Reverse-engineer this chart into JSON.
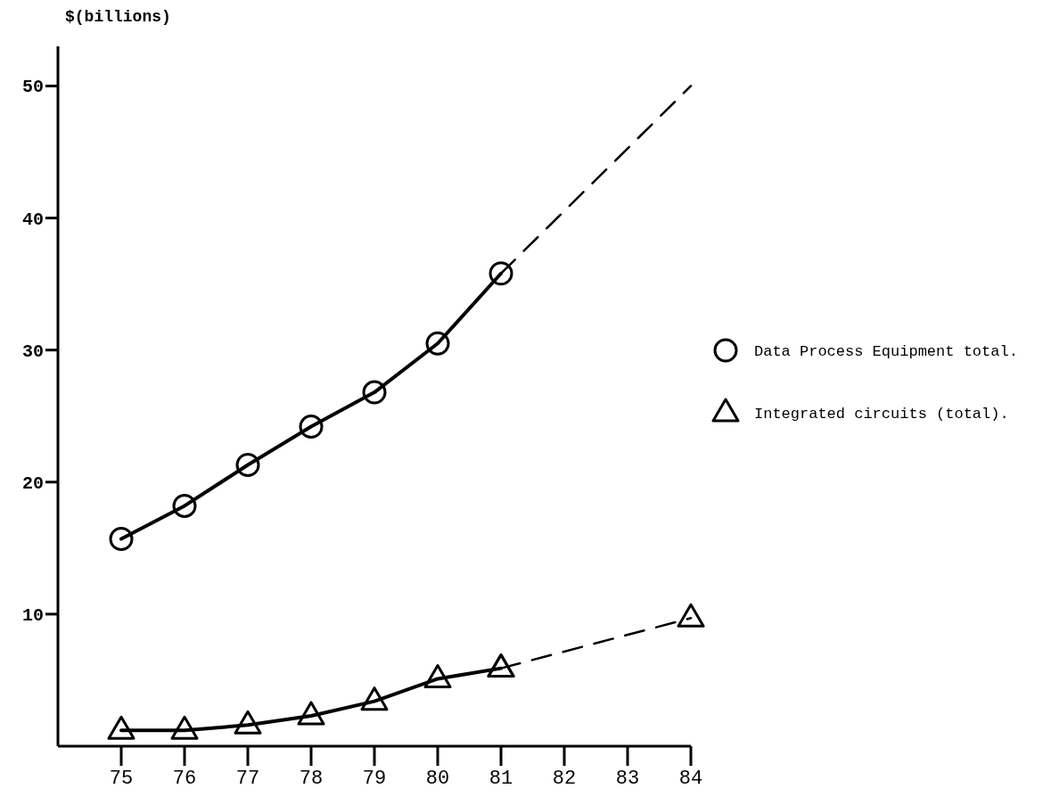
{
  "chart_data": {
    "type": "line",
    "ylabel": "$(billions)",
    "xlim": [
      74,
      84
    ],
    "xticks": [
      75,
      76,
      77,
      78,
      79,
      80,
      81,
      82,
      83,
      84
    ],
    "ylim": [
      0,
      53
    ],
    "yticks": [
      10,
      20,
      30,
      40,
      50
    ],
    "series": [
      {
        "name": "Data Process Equipment total.",
        "color": "#000000",
        "x": [
          75,
          76,
          77,
          78,
          79,
          80,
          81
        ],
        "values": [
          15.7,
          18.2,
          21.3,
          24.2,
          26.8,
          30.5,
          35.8
        ],
        "marker": "circle",
        "line_style": "solid"
      },
      {
        "color": "#000000",
        "x": [
          81,
          84
        ],
        "values": [
          35.8,
          50
        ],
        "marker": "none",
        "line_style": "dashed"
      },
      {
        "name": "Integrated circuits (total).",
        "color": "#000000",
        "x": [
          75,
          76,
          77,
          78,
          79,
          80,
          81
        ],
        "values": [
          1.2,
          1.2,
          1.6,
          2.3,
          3.4,
          5.1,
          5.9
        ],
        "marker": "triangle",
        "line_style": "solid"
      },
      {
        "color": "#000000",
        "x": [
          81,
          84
        ],
        "values": [
          5.9,
          9.7
        ],
        "marker": "triangle",
        "line_style": "dashed"
      }
    ],
    "grid": false,
    "legend": "right"
  }
}
